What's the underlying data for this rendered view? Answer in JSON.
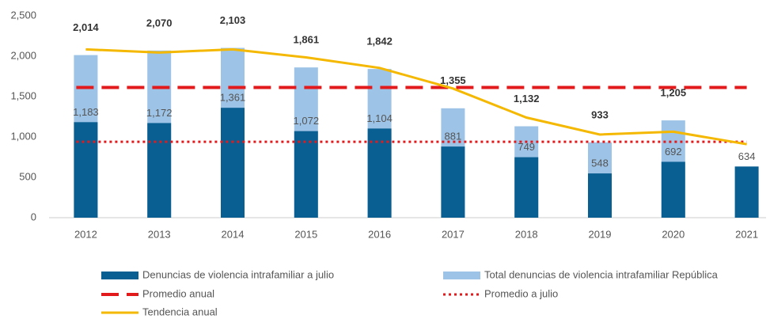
{
  "chart_data": {
    "type": "bar",
    "categories": [
      "2012",
      "2013",
      "2014",
      "2015",
      "2016",
      "2017",
      "2018",
      "2019",
      "2020",
      "2021"
    ],
    "series": [
      {
        "name": "Denuncias de violencia intrafamiliar a julio",
        "color": "#0a5f92",
        "values": [
          1183,
          1172,
          1361,
          1072,
          1104,
          881,
          749,
          548,
          692,
          634
        ],
        "value_labels": [
          "1,183",
          "1,172",
          "1,361",
          "1,072",
          "1,104",
          "881",
          "749",
          "548",
          "692",
          "634"
        ]
      },
      {
        "name": "Total denuncias de violencia intrafamiliar República",
        "color": "#9dc3e6",
        "values": [
          2014,
          2070,
          2103,
          1861,
          1842,
          1355,
          1132,
          933,
          1205,
          null
        ],
        "value_labels": [
          "2,014",
          "2,070",
          "2,103",
          "1,861",
          "1,842",
          "1,355",
          "1,132",
          "933",
          "1,205",
          null
        ]
      },
      {
        "name": "Promedio anual",
        "color": "#e31a1c",
        "style": "dashed",
        "value": 1613
      },
      {
        "name": "Promedio a julio",
        "color": "#e31a1c",
        "style": "dotted",
        "value": 940
      },
      {
        "name": "Tendencia anual",
        "color": "#f5b800",
        "style": "line",
        "values": [
          2085,
          2045,
          2085,
          1985,
          1855,
          1600,
          1240,
          1030,
          1065,
          910
        ]
      }
    ],
    "ylim": [
      0,
      2500
    ],
    "yticks": [
      0,
      {
        "value": 500,
        "label": "500"
      },
      {
        "value": 1000,
        "label": "1,000"
      },
      {
        "value": 1500,
        "label": "1,500"
      },
      {
        "value": 2000,
        "label": "2,000"
      },
      {
        "value": 2500,
        "label": "2,500"
      }
    ],
    "grid": false
  }
}
